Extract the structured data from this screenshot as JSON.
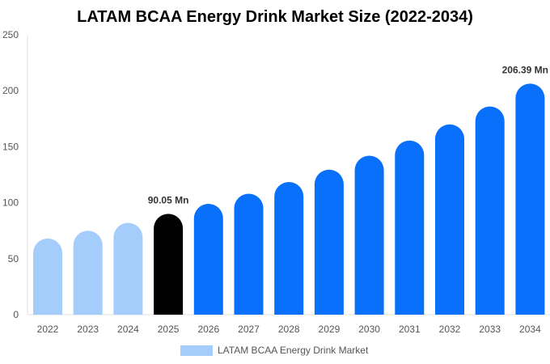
{
  "colors": {
    "historical": "#a4cdfc",
    "base": "#000000",
    "forecast": "#0870fb",
    "axis": "#e0e0e0",
    "text": "#555555"
  },
  "chart_data": {
    "type": "bar",
    "title": "LATAM BCAA Energy Drink Market Size (2022-2034)",
    "xlabel": "",
    "ylabel": "",
    "categories": [
      "2022",
      "2023",
      "2024",
      "2025",
      "2026",
      "2027",
      "2028",
      "2029",
      "2030",
      "2031",
      "2032",
      "2033",
      "2034"
    ],
    "series": [
      {
        "name": "LATAM BCAA Energy Drink Market",
        "values": [
          68,
          75,
          82,
          90.05,
          99,
          108,
          118.5,
          129.5,
          142,
          155.5,
          170,
          186,
          206.39
        ]
      }
    ],
    "bar_kinds": [
      "historical",
      "historical",
      "historical",
      "base",
      "forecast",
      "forecast",
      "forecast",
      "forecast",
      "forecast",
      "forecast",
      "forecast",
      "forecast",
      "forecast"
    ],
    "data_labels": [
      {
        "index": 3,
        "text": "90.05 Mn"
      },
      {
        "index": 12,
        "text": "206.39 Mn"
      }
    ],
    "ylim": [
      0,
      250
    ],
    "yticks": [
      0,
      50,
      100,
      150,
      200,
      250
    ],
    "grid": false,
    "legend": {
      "position": "bottom",
      "label": "LATAM BCAA Energy Drink Market"
    }
  }
}
